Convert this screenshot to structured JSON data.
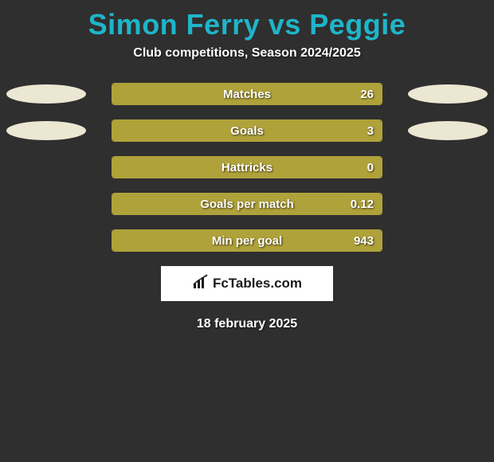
{
  "title": {
    "text": "Simon Ferry vs Peggie",
    "color": "#1fb5c9",
    "fontsize": 36
  },
  "subtitle": "Club competitions, Season 2024/2025",
  "colors": {
    "background": "#2f2f2f",
    "bar_border": "#b0a23a",
    "bar_fill": "#b0a23a",
    "ellipse_left": "#ece7d3",
    "ellipse_right": "#ece7d3",
    "text": "#ffffff",
    "accent": "#1fb5c9"
  },
  "ellipses": {
    "rows_with_ellipses": [
      0,
      1
    ],
    "width": 100,
    "height": 24
  },
  "bars": [
    {
      "label": "Matches",
      "value": "26",
      "fill_pct": 100
    },
    {
      "label": "Goals",
      "value": "3",
      "fill_pct": 100
    },
    {
      "label": "Hattricks",
      "value": "0",
      "fill_pct": 100
    },
    {
      "label": "Goals per match",
      "value": "0.12",
      "fill_pct": 100
    },
    {
      "label": "Min per goal",
      "value": "943",
      "fill_pct": 100
    }
  ],
  "bar_style": {
    "track_width": 340,
    "track_height": 28,
    "border_radius": 4,
    "label_fontsize": 15
  },
  "logo": {
    "text": "FcTables.com",
    "box_bg": "#ffffff",
    "text_color": "#1a1a1a"
  },
  "date": "18 february 2025"
}
